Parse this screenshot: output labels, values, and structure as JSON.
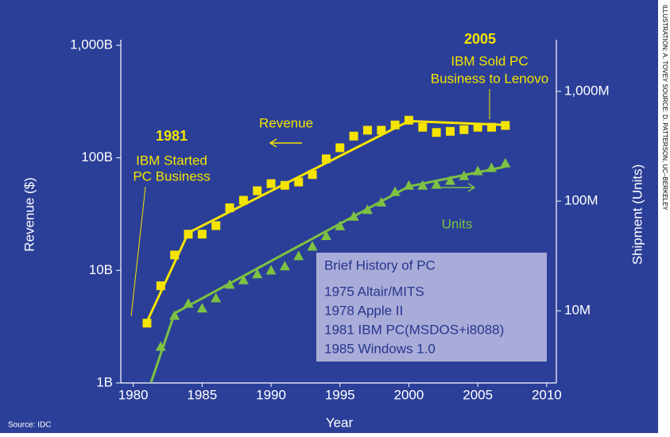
{
  "chart_data": {
    "type": "line",
    "title": null,
    "x_label": "Year",
    "y_label": "Revenue ($)",
    "y2_label": "Shipment (Units)",
    "log_y": true,
    "log_y2": true,
    "xlim": [
      1979.1,
      2010.7
    ],
    "xticks": [
      1980,
      1985,
      1990,
      1995,
      2000,
      2005,
      2010
    ],
    "ylim": [
      1,
      1000
    ],
    "yticks": [
      {
        "value": 1,
        "label": "1B"
      },
      {
        "value": 10,
        "label": "10B"
      },
      {
        "value": 100,
        "label": "100B"
      },
      {
        "value": 1000,
        "label": "1,000B"
      }
    ],
    "y2lim": [
      2.2,
      2630
    ],
    "y2ticks": [
      {
        "value": 10,
        "label": "10M"
      },
      {
        "value": 100,
        "label": "100M"
      },
      {
        "value": 1000,
        "label": "1,000M"
      }
    ],
    "x": [
      1981,
      1982,
      1983,
      1984,
      1985,
      1986,
      1987,
      1988,
      1989,
      1990,
      1991,
      1992,
      1993,
      1994,
      1995,
      1996,
      1997,
      1998,
      1999,
      2000,
      2001,
      2002,
      2003,
      2004,
      2005,
      2006,
      2007
    ],
    "series": [
      {
        "name": "Revenue",
        "color": "#f4e400",
        "marker": "square",
        "values": [
          3.4,
          7.3,
          13.7,
          21,
          21,
          25,
          36,
          42,
          51,
          59,
          57,
          61,
          71,
          98,
          123,
          156,
          176,
          176,
          196,
          216,
          187,
          168,
          172,
          178,
          187,
          187,
          194
        ],
        "trend": {
          "x": [
            1981,
            1984,
            2000,
            2007
          ],
          "values": [
            3.5,
            21.6,
            212,
            196
          ]
        }
      },
      {
        "name": "Units",
        "color": "#7dc242",
        "marker": "triangle",
        "axis": "y2",
        "values": [
          null,
          4.7,
          9.0,
          11.6,
          10.5,
          13,
          17.3,
          19,
          21.5,
          23.3,
          25.4,
          31.5,
          38.5,
          48,
          59,
          72,
          83,
          97,
          121,
          138,
          138,
          141,
          153,
          169,
          187,
          200,
          220
        ],
        "trend": {
          "x": [
            1981.3,
            1983,
            2000,
            2007
          ],
          "values": [
            2.24,
            9.5,
            136,
            206
          ]
        }
      }
    ],
    "annotations": {
      "ibm_start": {
        "year": "1981",
        "text": [
          "IBM Started",
          "PC Business"
        ]
      },
      "ibm_sold": {
        "year": "2005",
        "text": [
          "IBM Sold PC",
          "Business to Lenovo"
        ]
      }
    },
    "history_box": {
      "title": "Brief History of PC",
      "items": [
        "1975  Altair/MITS",
        "1978  Apple II",
        "1981  IBM PC(MSDOS+i8088)",
        "1985  Windows 1.0"
      ]
    },
    "source": "Source: IDC",
    "credit": "ILLUSTRATION: A. TOVEY    SOURCE: D. PATTERSON, UC–BERKELEY"
  }
}
